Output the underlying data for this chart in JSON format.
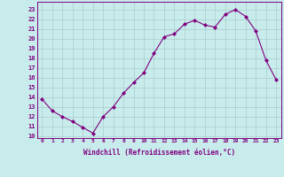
{
  "x": [
    0,
    1,
    2,
    3,
    4,
    5,
    6,
    7,
    8,
    9,
    10,
    11,
    12,
    13,
    14,
    15,
    16,
    17,
    18,
    19,
    20,
    21,
    22,
    23
  ],
  "y": [
    13.8,
    12.6,
    12.0,
    11.5,
    10.9,
    10.3,
    12.0,
    13.0,
    14.4,
    15.5,
    16.5,
    18.5,
    20.2,
    20.5,
    21.5,
    21.9,
    21.4,
    21.2,
    22.5,
    23.0,
    22.3,
    20.8,
    17.8,
    15.8
  ],
  "line_color": "#800080",
  "marker": "D",
  "marker_size": 2,
  "bg_color": "#c8ecec",
  "grid_color": "#aadddd",
  "xlabel": "Windchill (Refroidissement éolien,°C)",
  "ylabel_ticks": [
    10,
    11,
    12,
    13,
    14,
    15,
    16,
    17,
    18,
    19,
    20,
    21,
    22,
    23
  ],
  "xlim": [
    -0.5,
    23.5
  ],
  "ylim": [
    9.8,
    23.8
  ],
  "title": ""
}
